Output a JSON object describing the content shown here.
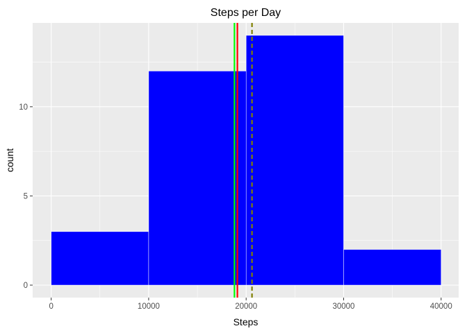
{
  "chart_data": {
    "type": "bar",
    "title": "Steps per Day",
    "xlabel": "Steps",
    "ylabel": "count",
    "bins": [
      {
        "start": 0,
        "end": 10000,
        "count": 3
      },
      {
        "start": 10000,
        "end": 20000,
        "count": 12
      },
      {
        "start": 20000,
        "end": 30000,
        "count": 14
      },
      {
        "start": 30000,
        "end": 40000,
        "count": 2
      }
    ],
    "xlim": [
      -1900,
      41800
    ],
    "ylim": [
      -0.7,
      14.7
    ],
    "x_ticks": [
      0,
      10000,
      20000,
      30000,
      40000
    ],
    "x_tick_labels": [
      "0",
      "10000",
      "20000",
      "30000",
      "40000"
    ],
    "y_ticks": [
      0,
      5,
      10
    ],
    "y_tick_labels": [
      "0",
      "5",
      "10"
    ],
    "x_minor_ticks": [
      5000,
      15000,
      25000,
      35000
    ],
    "y_minor_ticks": [
      2.5,
      7.5,
      12.5
    ],
    "bar_color": "#0000FF",
    "bar_outline_color": "#FFFFFF",
    "panel_background": "#EBEBEB",
    "grid_color": "#FFFFFF",
    "grid": true,
    "reference_lines": [
      {
        "x": 18800,
        "color": "#00FF00",
        "style": "solid"
      },
      {
        "x": 19100,
        "color": "#FF0000",
        "style": "solid"
      },
      {
        "x": 20600,
        "color": "#808000",
        "style": "dashed"
      }
    ]
  }
}
